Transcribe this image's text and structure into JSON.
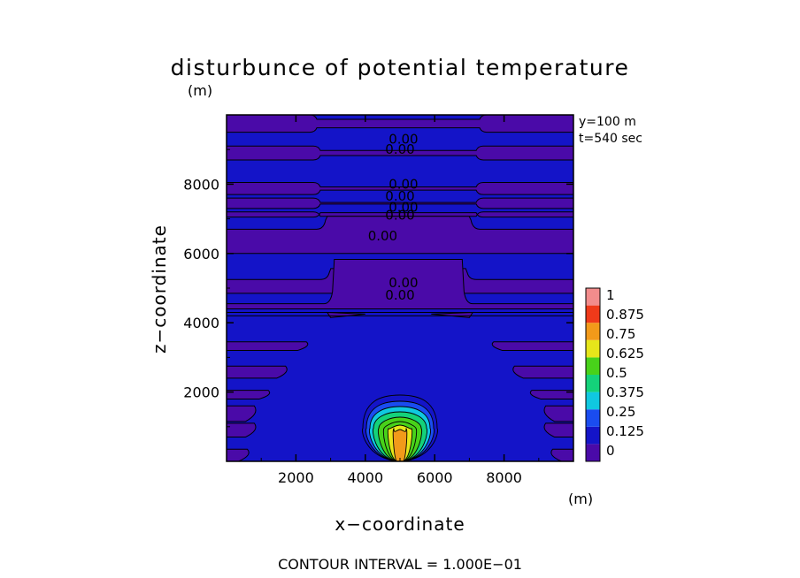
{
  "chart_data": {
    "type": "contour",
    "title": "disturbunce of potential temperature",
    "y_unit": "(m)",
    "x_unit": "(m)",
    "xlabel": "x−coordinate",
    "ylabel": "z−coordinate",
    "xlim": [
      0,
      10000
    ],
    "ylim": [
      0,
      10000
    ],
    "x_ticks": [
      2000,
      4000,
      6000,
      8000
    ],
    "y_ticks": [
      2000,
      4000,
      6000,
      8000
    ],
    "x_tick_labels": [
      "2000",
      "4000",
      "6000",
      "8000"
    ],
    "y_tick_labels": [
      "2000",
      "4000",
      "6000",
      "8000"
    ],
    "info_lines": [
      "y=100  m",
      "t=540  sec"
    ],
    "footer": "CONTOUR INTERVAL = 1.000E−01",
    "colorbar": {
      "levels": [
        0,
        0.125,
        0.25,
        0.375,
        0.5,
        0.625,
        0.75,
        0.875,
        1
      ],
      "labels": [
        "0",
        "0.125",
        "0.25",
        "0.375",
        "0.5",
        "0.625",
        "0.75",
        "0.875",
        "1"
      ],
      "colors": [
        "#4a0aa8",
        "#1414c8",
        "#1a4cf0",
        "#10c8e0",
        "#14d27a",
        "#48d21a",
        "#e6e61a",
        "#f29a1a",
        "#ef3a1a",
        "#f28c8c"
      ]
    },
    "background_color": "#1414c8",
    "band_color": "#4a0aa8",
    "contour_labels": [
      {
        "text": "0.00",
        "x": 5100,
        "z": 9300
      },
      {
        "text": "0.00",
        "x": 5000,
        "z": 9000
      },
      {
        "text": "0.00",
        "x": 5100,
        "z": 8000
      },
      {
        "text": "0.00",
        "x": 5000,
        "z": 7650
      },
      {
        "text": "0.00",
        "x": 5100,
        "z": 7330
      },
      {
        "text": "0.00",
        "x": 5000,
        "z": 7100
      },
      {
        "text": "0.00",
        "x": 4500,
        "z": 6500
      },
      {
        "text": "0.00",
        "x": 5100,
        "z": 5150
      },
      {
        "text": "0.00",
        "x": 5000,
        "z": 4800
      }
    ],
    "bubble": {
      "center_x": 5000,
      "center_z": 1000,
      "max_value": 0.9
    }
  }
}
